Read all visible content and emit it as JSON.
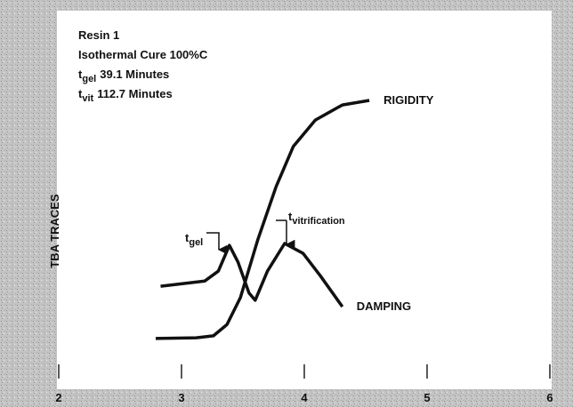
{
  "chart_data": {
    "type": "line",
    "ylabel": "TBA TRACES",
    "xlim": [
      2,
      6
    ],
    "xticks": [
      2,
      3,
      4,
      5,
      6
    ],
    "ylim": [
      0,
      100
    ],
    "info": [
      {
        "text": "Resin 1"
      },
      {
        "text": "Isothermal Cure 100%C"
      },
      {
        "symbol": "t",
        "subscript": "gel",
        "text": "39.1 Minutes"
      },
      {
        "symbol": "t",
        "subscript": "vit",
        "text": "112.7 Minutes"
      }
    ],
    "markers": [
      {
        "symbol": "t",
        "subscript": "gel"
      },
      {
        "symbol": "t",
        "subscript": "vitrification"
      }
    ],
    "series": [
      {
        "name": "RIGIDITY",
        "color": "#111111",
        "x": [
          2.79,
          3.12,
          3.26,
          3.37,
          3.48,
          3.62,
          3.77,
          3.91,
          4.09,
          4.31,
          4.53
        ],
        "values": [
          13.4,
          13.6,
          14.1,
          17.1,
          24.2,
          39.4,
          53.5,
          64.1,
          71.1,
          75.1,
          76.3
        ]
      },
      {
        "name": "DAMPING",
        "color": "#111111",
        "x": [
          2.83,
          3.19,
          3.3,
          3.39,
          3.46,
          3.55,
          3.6,
          3.7,
          3.84,
          3.99,
          4.13,
          4.31
        ],
        "values": [
          27.2,
          28.6,
          31.2,
          38.0,
          33.6,
          25.4,
          23.5,
          31.2,
          38.5,
          35.9,
          30.0,
          21.8
        ]
      }
    ]
  }
}
